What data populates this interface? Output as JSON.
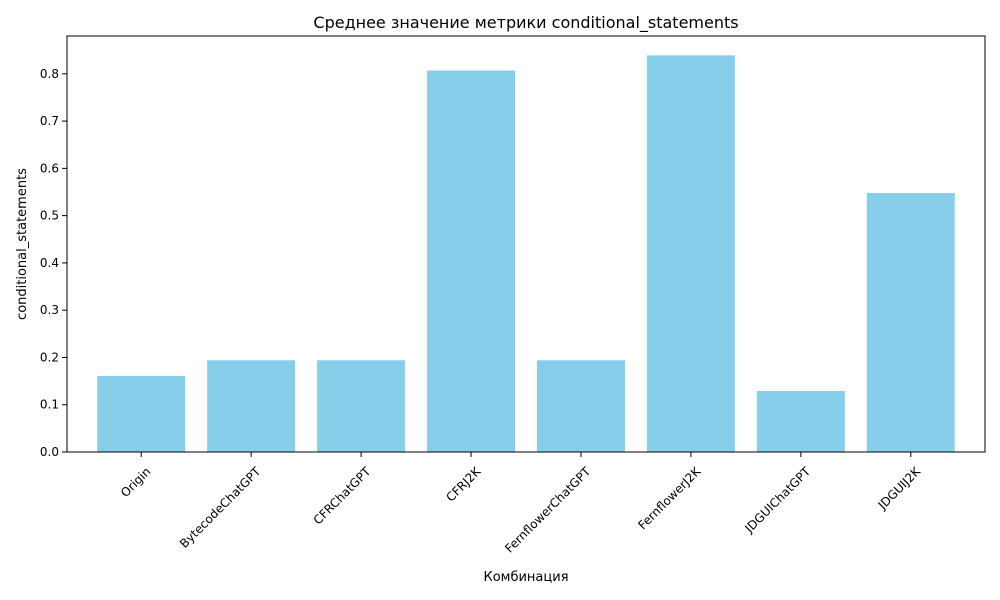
{
  "chart_data": {
    "type": "bar",
    "title": "Среднее значение метрики conditional_statements",
    "xlabel": "Комбинация",
    "ylabel": "conditional_statements",
    "categories": [
      "Origin",
      "BytecodeChatGPT",
      "CFRChatGPT",
      "CFRJ2K",
      "FernflowerChatGPT",
      "FernflowerJ2K",
      "JDGUIChatGPT",
      "JDGUIJ2K"
    ],
    "values": [
      0.161,
      0.194,
      0.194,
      0.807,
      0.194,
      0.839,
      0.129,
      0.548
    ],
    "ylim": [
      0,
      0.88
    ],
    "yticks": [
      0.0,
      0.1,
      0.2,
      0.3,
      0.4,
      0.5,
      0.6,
      0.7,
      0.8
    ],
    "ytick_labels": [
      "0.0",
      "0.1",
      "0.2",
      "0.3",
      "0.4",
      "0.5",
      "0.6",
      "0.7",
      "0.8"
    ],
    "bar_color": "#87ceeb",
    "grid": false,
    "legend": "none"
  }
}
